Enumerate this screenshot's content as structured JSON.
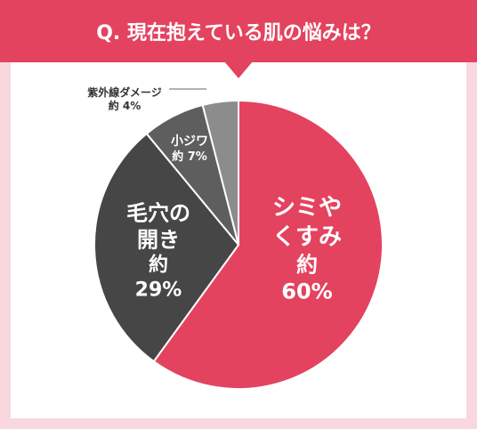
{
  "chart_data": {
    "type": "pie",
    "title": "Q. 現在抱えている肌の悩みは？",
    "categories": [
      "シミやくすみ",
      "毛穴の開き",
      "小ジワ",
      "紫外線ダメージ"
    ],
    "values": [
      60,
      29,
      7,
      4
    ],
    "value_labels": [
      "約 60%",
      "約 29%",
      "約 7%",
      "約 4%"
    ],
    "colors": [
      "#e3435f",
      "#464646",
      "#5e5e5e",
      "#8c8c8c"
    ]
  }
}
